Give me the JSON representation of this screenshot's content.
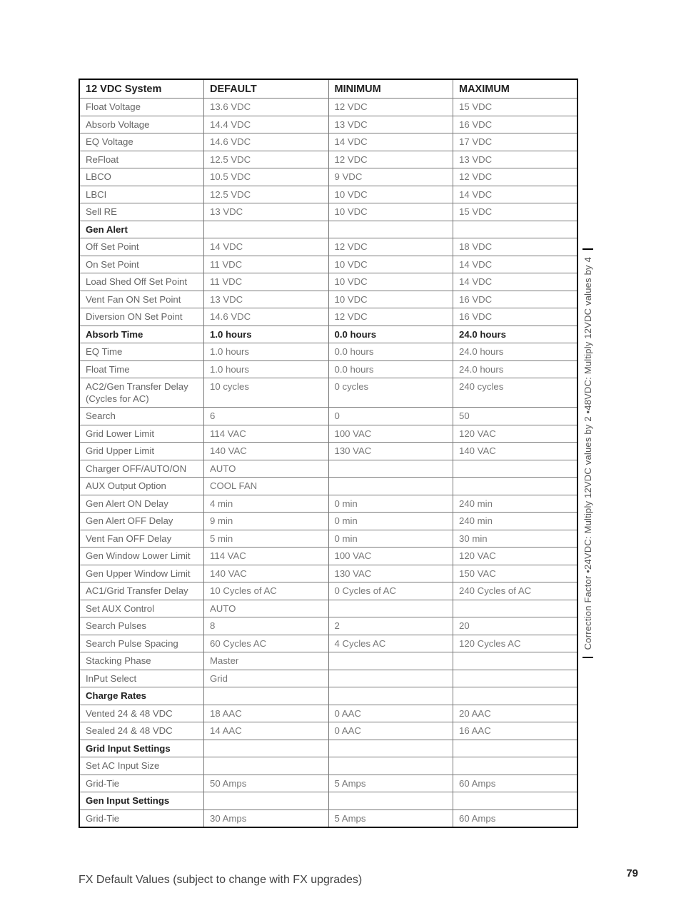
{
  "columns": [
    "12 VDC System",
    "DEFAULT",
    "MINIMUM",
    "MAXIMUM"
  ],
  "rows": [
    {
      "cells": [
        "Float  Voltage",
        "13.6 VDC",
        "12 VDC",
        "15 VDC"
      ]
    },
    {
      "cells": [
        "Absorb Voltage",
        "14.4 VDC",
        "13 VDC",
        "16 VDC"
      ]
    },
    {
      "cells": [
        "EQ Voltage",
        "14.6 VDC",
        "14 VDC",
        "17 VDC"
      ]
    },
    {
      "cells": [
        "ReFloat",
        "12.5 VDC",
        "12 VDC",
        "13 VDC"
      ]
    },
    {
      "cells": [
        "LBCO",
        "10.5 VDC",
        "9 VDC",
        "12 VDC"
      ]
    },
    {
      "cells": [
        "LBCI",
        "12.5 VDC",
        "10 VDC",
        "14 VDC"
      ]
    },
    {
      "cells": [
        "Sell RE",
        "13 VDC",
        "10 VDC",
        "15 VDC"
      ]
    },
    {
      "cells": [
        "Gen Alert",
        "",
        "",
        ""
      ],
      "section": true
    },
    {
      "cells": [
        "Off Set Point",
        "14 VDC",
        "12 VDC",
        "18 VDC"
      ]
    },
    {
      "cells": [
        "On Set Point",
        "11 VDC",
        "10 VDC",
        "14 VDC"
      ]
    },
    {
      "cells": [
        "Load Shed Off Set Point",
        "11 VDC",
        "10 VDC",
        "14 VDC"
      ]
    },
    {
      "cells": [
        "Vent Fan ON Set Point",
        "13 VDC",
        "10 VDC",
        "16 VDC"
      ]
    },
    {
      "cells": [
        "Diversion ON Set Point",
        "14.6 VDC",
        "12 VDC",
        "16 VDC"
      ]
    },
    {
      "cells": [
        "Absorb Time",
        "1.0 hours",
        "0.0 hours",
        "24.0 hours"
      ],
      "boldrow": true
    },
    {
      "cells": [
        "EQ Time",
        "1.0 hours",
        "0.0 hours",
        "24.0 hours"
      ]
    },
    {
      "cells": [
        "Float Time",
        "1.0 hours",
        "0.0 hours",
        "24.0 hours"
      ]
    },
    {
      "cells": [
        "AC2/Gen Transfer Delay (Cycles for AC)",
        "10 cycles",
        "0 cycles",
        "240 cycles"
      ]
    },
    {
      "cells": [
        "Search",
        "6",
        "0",
        "50"
      ]
    },
    {
      "cells": [
        "Grid Lower Limit",
        "114 VAC",
        "100 VAC",
        "120 VAC"
      ]
    },
    {
      "cells": [
        "Grid Upper Limit",
        "140 VAC",
        "130 VAC",
        "140 VAC"
      ]
    },
    {
      "cells": [
        "Charger OFF/AUTO/ON",
        "AUTO",
        "",
        ""
      ]
    },
    {
      "cells": [
        "AUX Output Option",
        "COOL FAN",
        "",
        ""
      ]
    },
    {
      "cells": [
        "Gen Alert ON Delay",
        "4 min",
        "0 min",
        "240 min"
      ]
    },
    {
      "cells": [
        "Gen Alert OFF Delay",
        "9 min",
        "0 min",
        "240 min"
      ]
    },
    {
      "cells": [
        "Vent Fan OFF Delay",
        "5 min",
        "0 min",
        "30 min"
      ]
    },
    {
      "cells": [
        "Gen Window Lower Limit",
        "114 VAC",
        "100 VAC",
        "120 VAC"
      ]
    },
    {
      "cells": [
        "Gen Upper Window Limit",
        "140 VAC",
        "130 VAC",
        "150 VAC"
      ]
    },
    {
      "cells": [
        "AC1/Grid Transfer Delay",
        "10 Cycles of AC",
        "0 Cycles of AC",
        "240 Cycles of AC"
      ]
    },
    {
      "cells": [
        "Set AUX Control",
        "AUTO",
        "",
        ""
      ]
    },
    {
      "cells": [
        "Search Pulses",
        "8",
        "2",
        "20"
      ]
    },
    {
      "cells": [
        "Search Pulse Spacing",
        "60 Cycles AC",
        "4 Cycles AC",
        "120 Cycles AC"
      ]
    },
    {
      "cells": [
        "Stacking Phase",
        "Master",
        "",
        ""
      ]
    },
    {
      "cells": [
        "InPut Select",
        "Grid",
        "",
        ""
      ]
    },
    {
      "cells": [
        "Charge Rates",
        "",
        "",
        ""
      ],
      "section": true
    },
    {
      "cells": [
        "Vented 24 & 48 VDC",
        "18 AAC",
        "0 AAC",
        "20 AAC"
      ]
    },
    {
      "cells": [
        "Sealed 24 & 48 VDC",
        "14 AAC",
        "0 AAC",
        "16 AAC"
      ]
    },
    {
      "cells": [
        "Grid Input Settings",
        "",
        "",
        ""
      ],
      "section": true
    },
    {
      "cells": [
        "Set AC Input Size",
        "",
        "",
        ""
      ]
    },
    {
      "cells": [
        "Grid-Tie",
        "50 Amps",
        "5 Amps",
        "60 Amps"
      ]
    },
    {
      "cells": [
        "Gen Input Settings",
        "",
        "",
        ""
      ],
      "section": true
    },
    {
      "cells": [
        "Grid-Tie",
        "30 Amps",
        "5 Amps",
        "60 Amps"
      ]
    }
  ],
  "side_note": "Correction Factor   •24VDC: Multiply 12VDC values by 2    •48VDC: Multiply 12VDC values by 4",
  "caption": "FX Default Values (subject to change with FX upgrades)",
  "page_number": "79"
}
